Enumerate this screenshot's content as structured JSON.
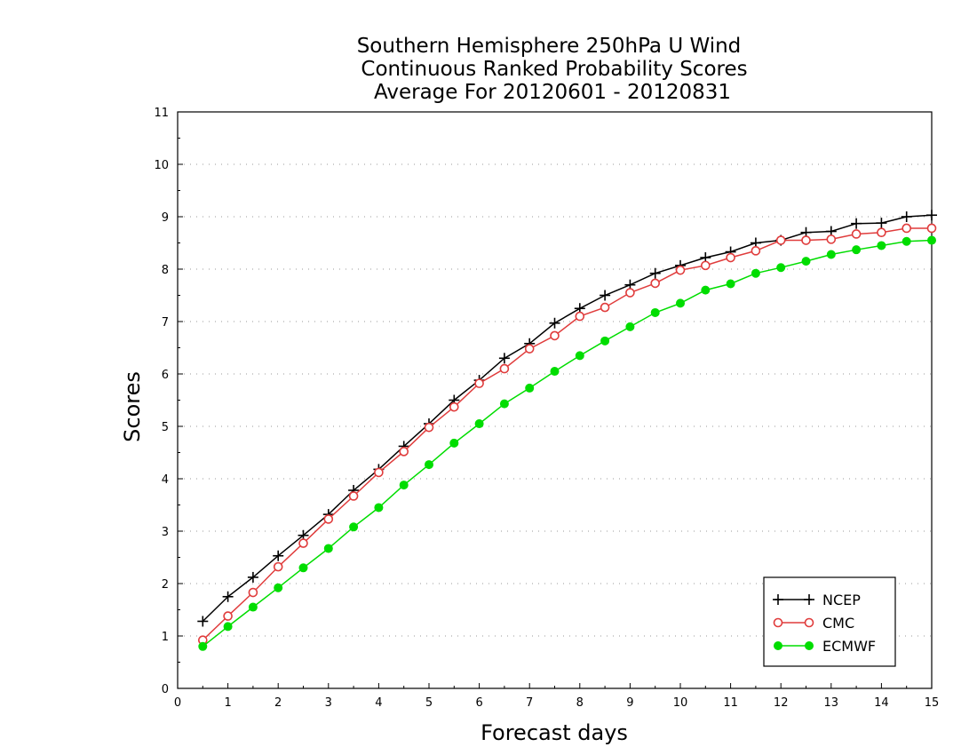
{
  "chart_data": {
    "type": "line",
    "title_lines": [
      "Southern Hemisphere 250hPa U Wind",
      "Continuous Ranked Probability Scores",
      "Average For 20120601 - 20120831"
    ],
    "xlabel": "Forecast days",
    "ylabel": "Scores",
    "xlim": [
      0,
      15
    ],
    "ylim": [
      0,
      11
    ],
    "x_ticks": [
      "0",
      "1",
      "2",
      "3",
      "4",
      "5",
      "6",
      "7",
      "8",
      "9",
      "10",
      "11",
      "12",
      "13",
      "14",
      "15"
    ],
    "y_ticks": [
      "0",
      "1",
      "2",
      "3",
      "4",
      "5",
      "6",
      "7",
      "8",
      "9",
      "10",
      "11"
    ],
    "grid": "dotted-horizontal",
    "legend_position": "bottom-right",
    "x": [
      0.5,
      1,
      1.5,
      2,
      2.5,
      3,
      3.5,
      4,
      4.5,
      5,
      5.5,
      6,
      6.5,
      7,
      7.5,
      8,
      8.5,
      9,
      9.5,
      10,
      10.5,
      11,
      11.5,
      12,
      12.5,
      13,
      13.5,
      14,
      14.5,
      15
    ],
    "series": [
      {
        "name": "NCEP",
        "color": "#000000",
        "marker": "plus",
        "values": [
          1.28,
          1.75,
          2.12,
          2.53,
          2.92,
          3.32,
          3.78,
          4.18,
          4.62,
          5.05,
          5.5,
          5.88,
          6.3,
          6.58,
          6.97,
          7.25,
          7.5,
          7.7,
          7.92,
          8.07,
          8.22,
          8.33,
          8.5,
          8.55,
          8.7,
          8.72,
          8.87,
          8.88,
          9.0,
          9.03
        ]
      },
      {
        "name": "CMC",
        "color": "#e03c3c",
        "marker": "open-circle",
        "values": [
          0.92,
          1.38,
          1.83,
          2.32,
          2.77,
          3.23,
          3.67,
          4.12,
          4.52,
          4.98,
          5.37,
          5.82,
          6.1,
          6.48,
          6.73,
          7.1,
          7.27,
          7.55,
          7.73,
          7.98,
          8.07,
          8.22,
          8.35,
          8.55,
          8.55,
          8.57,
          8.67,
          8.7,
          8.78,
          8.78
        ]
      },
      {
        "name": "ECMWF",
        "color": "#00dd00",
        "marker": "filled-circle",
        "values": [
          0.8,
          1.18,
          1.55,
          1.92,
          2.3,
          2.67,
          3.08,
          3.45,
          3.88,
          4.27,
          4.68,
          5.05,
          5.43,
          5.73,
          6.05,
          6.35,
          6.63,
          6.9,
          7.17,
          7.35,
          7.6,
          7.72,
          7.92,
          8.03,
          8.15,
          8.28,
          8.37,
          8.45,
          8.53,
          8.55
        ]
      }
    ]
  }
}
